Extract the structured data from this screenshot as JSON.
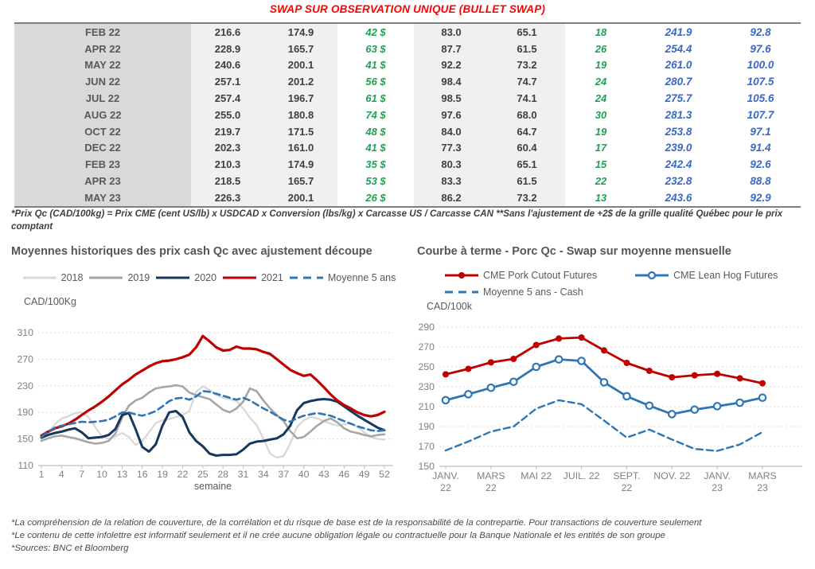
{
  "title": "SWAP SUR OBSERVATION UNIQUE (BULLET SWAP)",
  "colors": {
    "title_red": "#FF0000",
    "green_text": "#1FA052",
    "blue_text": "#3A68C4",
    "red_series": "#C00000",
    "navy_series": "#17375E",
    "blue_series": "#2E75B6",
    "gray_2019": "#A6A6A6",
    "gray_2018": "#D9D9D9"
  },
  "table": {
    "rows": [
      [
        "FEB 22",
        "216.6",
        "174.9",
        "42 $",
        "83.0",
        "65.1",
        "18",
        "241.9",
        "92.8"
      ],
      [
        "APR 22",
        "228.9",
        "165.7",
        "63 $",
        "87.7",
        "61.5",
        "26",
        "254.4",
        "97.6"
      ],
      [
        "MAY 22",
        "240.6",
        "200.1",
        "41 $",
        "92.2",
        "73.2",
        "19",
        "261.0",
        "100.0"
      ],
      [
        "JUN 22",
        "257.1",
        "201.2",
        "56 $",
        "98.4",
        "74.7",
        "24",
        "280.7",
        "107.5"
      ],
      [
        "JUL 22",
        "257.4",
        "196.7",
        "61 $",
        "98.5",
        "74.1",
        "24",
        "275.7",
        "105.6"
      ],
      [
        "AUG 22",
        "255.0",
        "180.8",
        "74 $",
        "97.6",
        "68.0",
        "30",
        "281.3",
        "107.7"
      ],
      [
        "OCT 22",
        "219.7",
        "171.5",
        "48 $",
        "84.0",
        "64.7",
        "19",
        "253.8",
        "97.1"
      ],
      [
        "DEC 22",
        "202.3",
        "161.0",
        "41 $",
        "77.3",
        "60.4",
        "17",
        "239.0",
        "91.4"
      ],
      [
        "FEB 23",
        "210.3",
        "174.9",
        "35 $",
        "80.3",
        "65.1",
        "15",
        "242.4",
        "92.6"
      ],
      [
        "APR 23",
        "218.5",
        "165.7",
        "53 $",
        "83.3",
        "61.5",
        "22",
        "232.8",
        "88.8"
      ],
      [
        "MAY 23",
        "226.3",
        "200.1",
        "26 $",
        "86.2",
        "73.2",
        "13",
        "243.6",
        "92.9"
      ]
    ]
  },
  "table_note": "*Prix Qc (CAD/100kg) = Prix CME (cent US/lb) x USDCAD x Conversion (lbs/kg) x Carcasse US / Carcasse CAN **Sans l'ajustement de +2$ de la grille qualité Québec pour le prix comptant",
  "chart_data": [
    {
      "type": "line",
      "title": "Moyennes historiques des prix cash Qc avec ajustement découpe",
      "ylabel": "CAD/100Kg",
      "xlabel": "semaine",
      "ylim": [
        110,
        310
      ],
      "yticks": [
        110,
        150,
        190,
        230,
        270,
        310
      ],
      "xticks": [
        1,
        4,
        7,
        10,
        13,
        16,
        19,
        22,
        25,
        28,
        31,
        34,
        37,
        40,
        43,
        46,
        49,
        52
      ],
      "x": [
        1,
        2,
        3,
        4,
        5,
        6,
        7,
        8,
        9,
        10,
        11,
        12,
        13,
        14,
        15,
        16,
        17,
        18,
        19,
        20,
        21,
        22,
        23,
        24,
        25,
        26,
        27,
        28,
        29,
        30,
        31,
        32,
        33,
        34,
        35,
        36,
        37,
        38,
        39,
        40,
        41,
        42,
        43,
        44,
        45,
        46,
        47,
        48,
        49,
        50,
        51,
        52
      ],
      "legend_position": "top",
      "grid": true,
      "series": [
        {
          "name": "2018",
          "color": "#D9D9D9",
          "dash": false,
          "width": 2.4,
          "values": [
            148,
            158,
            172,
            181,
            184,
            189,
            190,
            183,
            168,
            154,
            150,
            154,
            159,
            153,
            141,
            147,
            160,
            174,
            178,
            180,
            183,
            186,
            192,
            221,
            229,
            224,
            216,
            212,
            210,
            207,
            196,
            182,
            171,
            151,
            128,
            122,
            124,
            143,
            168,
            178,
            183,
            181,
            177,
            173,
            170,
            172,
            174,
            168,
            160,
            153,
            150,
            149
          ]
        },
        {
          "name": "2019",
          "color": "#A6A6A6",
          "dash": false,
          "width": 2.6,
          "values": [
            147,
            151,
            154,
            155,
            153,
            151,
            148,
            145,
            143,
            144,
            147,
            158,
            182,
            200,
            208,
            212,
            220,
            226,
            228,
            229,
            231,
            229,
            220,
            216,
            213,
            210,
            202,
            194,
            190,
            196,
            206,
            226,
            222,
            208,
            196,
            186,
            177,
            162,
            151,
            153,
            161,
            170,
            177,
            181,
            175,
            166,
            161,
            159,
            156,
            154,
            156,
            157
          ]
        },
        {
          "name": "2020",
          "color": "#17375E",
          "dash": false,
          "width": 3,
          "values": [
            152,
            156,
            159,
            161,
            164,
            166,
            160,
            151,
            152,
            153,
            156,
            165,
            186,
            189,
            165,
            138,
            131,
            142,
            170,
            190,
            192,
            183,
            160,
            147,
            139,
            128,
            125,
            126,
            126,
            127,
            134,
            143,
            146,
            147,
            149,
            151,
            157,
            170,
            193,
            204,
            207,
            209,
            210,
            209,
            206,
            199,
            192,
            185,
            179,
            173,
            167,
            163
          ]
        },
        {
          "name": "2021",
          "color": "#C00000",
          "dash": false,
          "width": 3.2,
          "values": [
            155,
            161,
            166,
            169,
            173,
            179,
            186,
            193,
            199,
            206,
            214,
            223,
            232,
            239,
            247,
            253,
            259,
            264,
            267,
            268,
            270,
            273,
            277,
            288,
            305,
            297,
            288,
            283,
            284,
            289,
            286,
            286,
            285,
            281,
            278,
            270,
            262,
            254,
            249,
            245,
            247,
            238,
            228,
            217,
            208,
            201,
            196,
            190,
            186,
            184,
            186,
            191
          ]
        },
        {
          "name": "Moyenne 5 ans",
          "color": "#2E75B6",
          "dash": true,
          "width": 2.6,
          "values": [
            153,
            161,
            167,
            170,
            172,
            174,
            176,
            175,
            176,
            177,
            179,
            184,
            190,
            190,
            187,
            185,
            188,
            192,
            199,
            207,
            211,
            212,
            209,
            214,
            222,
            221,
            218,
            215,
            212,
            209,
            212,
            208,
            202,
            196,
            191,
            185,
            179,
            176,
            181,
            185,
            187,
            189,
            187,
            185,
            181,
            177,
            173,
            169,
            166,
            163,
            162,
            163
          ]
        }
      ]
    },
    {
      "type": "line",
      "title": "Courbe à terme - Porc Qc - Swap sur moyenne mensuelle",
      "ylabel": "CAD/100k",
      "xlabel": "",
      "ylim": [
        150,
        290
      ],
      "yticks": [
        150,
        170,
        190,
        210,
        230,
        250,
        270,
        290
      ],
      "xticks": [
        {
          "label": "JANV.",
          "label2": "22",
          "index": 0
        },
        {
          "label": "MARS",
          "label2": "22",
          "index": 2
        },
        {
          "label": "MAI 22",
          "label2": "",
          "index": 4
        },
        {
          "label": "JUIL. 22",
          "label2": "",
          "index": 6
        },
        {
          "label": "SEPT.",
          "label2": "22",
          "index": 8
        },
        {
          "label": "NOV. 22",
          "label2": "",
          "index": 10
        },
        {
          "label": "JANV.",
          "label2": "23",
          "index": 12
        },
        {
          "label": "MARS",
          "label2": "23",
          "index": 14
        }
      ],
      "categories": [
        "JANV. 22",
        "FEVR. 22",
        "MARS 22",
        "AVR. 22",
        "MAI 22",
        "JUIN 22",
        "JUIL. 22",
        "AOUT 22",
        "SEPT. 22",
        "OCT. 22",
        "NOV. 22",
        "DEC. 22",
        "JANV. 23",
        "FEVR. 23",
        "MARS 23"
      ],
      "legend_position": "top",
      "grid": true,
      "series": [
        {
          "name": "CME Pork Cutout Futures",
          "color": "#C00000",
          "dash": false,
          "width": 2.8,
          "marker": "filled",
          "values": [
            242.5,
            248,
            254.5,
            258,
            272,
            278.5,
            279.5,
            266.5,
            254,
            246,
            239.5,
            241.5,
            243,
            238.5,
            233.5
          ]
        },
        {
          "name": "CME Lean Hog Futures",
          "color": "#2E75B6",
          "dash": false,
          "width": 2.8,
          "marker": "open",
          "values": [
            216.5,
            222.5,
            229,
            235,
            250,
            257.5,
            256,
            234.5,
            220.5,
            211,
            202.5,
            207,
            210.5,
            214,
            219
          ]
        },
        {
          "name": "Moyenne 5 ans - Cash",
          "color": "#2E75B6",
          "dash": true,
          "width": 2.4,
          "values": [
            166,
            175,
            185,
            190,
            208,
            216.5,
            212.5,
            196,
            179,
            187,
            177,
            167.5,
            165.5,
            172,
            184.5
          ]
        }
      ]
    }
  ],
  "footer_notes": [
    "*La compréhension de la relation de couverture, de la corrélation et du risque de base est de la responsabilité de la contrepartie. Pour transactions de couverture seulement",
    "*Le contenu de cette infolettre est informatif seulement et il ne crée aucune obligation légale ou contractuelle pour la Banque Nationale et les entités de son groupe",
    "*Sources: BNC et Bloomberg"
  ]
}
